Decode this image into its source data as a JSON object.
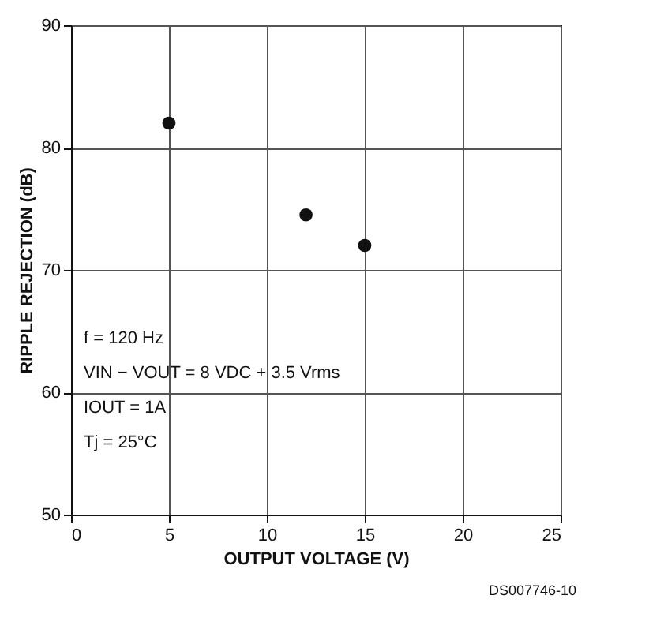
{
  "chart_data": {
    "type": "scatter",
    "xlabel": "OUTPUT VOLTAGE (V)",
    "ylabel": "RIPPLE REJECTION (dB)",
    "x": [
      5,
      12,
      15
    ],
    "series": [
      {
        "color": "#111111",
        "values": [
          82,
          74.5,
          72
        ]
      }
    ],
    "xlim": [
      0,
      25
    ],
    "xticks": [
      0,
      5,
      10,
      15,
      20,
      25
    ],
    "ylim": [
      50,
      90
    ],
    "yticks": [
      50,
      60,
      70,
      80,
      90
    ],
    "grid": true,
    "marker": "circle",
    "annotations": [
      "f = 120 Hz",
      "VIN − VOUT = 8 VDC + 3.5 Vrms",
      "IOUT = 1A",
      "Tj = 25°C",
      "DS007746-10"
    ]
  }
}
